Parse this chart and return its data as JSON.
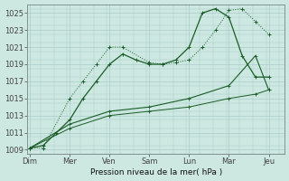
{
  "background_color": "#cce8e0",
  "grid_color": "#aacccc",
  "line_color": "#1a5c28",
  "xlabel": "Pression niveau de la mer( hPa )",
  "ylim": [
    1008.5,
    1026.0
  ],
  "xlim": [
    -0.1,
    9.6
  ],
  "ytick_vals": [
    1009,
    1011,
    1013,
    1015,
    1017,
    1019,
    1021,
    1023,
    1025
  ],
  "day_positions": [
    0,
    1.5,
    3.0,
    4.5,
    6.0,
    7.5,
    9.0
  ],
  "day_labels": [
    "Dim",
    "Mer",
    "Ven",
    "Sam",
    "Lun",
    "Mar",
    "Jeu"
  ],
  "s1x": [
    0,
    0.5,
    1.5,
    2.0,
    2.5,
    3.0,
    3.5,
    4.5,
    5.0,
    5.5,
    6.0,
    6.5,
    7.0,
    7.5,
    8.0,
    8.5,
    9.0
  ],
  "s1y": [
    1009.2,
    1009.2,
    1015.0,
    1017.0,
    1019.0,
    1021.0,
    1021.0,
    1019.2,
    1019.0,
    1019.2,
    1019.5,
    1021.0,
    1023.0,
    1025.3,
    1025.5,
    1024.0,
    1022.5
  ],
  "s2x": [
    0,
    0.5,
    1.0,
    1.5,
    2.0,
    2.5,
    3.0,
    3.5,
    4.0,
    4.5,
    5.0,
    5.5,
    6.0,
    6.5,
    7.0,
    7.5,
    8.0,
    8.5,
    9.0
  ],
  "s2y": [
    1009.2,
    1009.5,
    1011.0,
    1012.5,
    1015.0,
    1017.0,
    1019.0,
    1020.2,
    1019.5,
    1019.0,
    1019.0,
    1019.5,
    1021.0,
    1025.0,
    1025.5,
    1024.5,
    1020.0,
    1017.5,
    1017.5
  ],
  "s3x": [
    0,
    1.5,
    3.0,
    4.5,
    6.0,
    7.5,
    8.5,
    9.0
  ],
  "s3y": [
    1009.2,
    1012.0,
    1013.5,
    1014.0,
    1015.0,
    1016.5,
    1020.0,
    1016.0
  ],
  "s4x": [
    0,
    1.5,
    3.0,
    4.5,
    6.0,
    7.5,
    8.5,
    9.0
  ],
  "s4y": [
    1009.2,
    1011.5,
    1013.0,
    1013.5,
    1014.0,
    1015.0,
    1015.5,
    1016.0
  ]
}
